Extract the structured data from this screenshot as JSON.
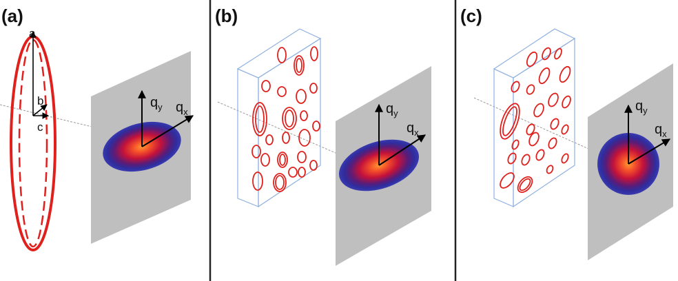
{
  "panels": [
    {
      "label": "(a)",
      "semi_axes": [
        "a",
        "b",
        "c"
      ],
      "q_axes": {
        "y": {
          "base": "q",
          "sub": "y"
        },
        "x": {
          "base": "q",
          "sub": "x"
        }
      }
    },
    {
      "label": "(b)",
      "q_axes": {
        "y": {
          "base": "q",
          "sub": "y"
        },
        "x": {
          "base": "q",
          "sub": "x"
        }
      }
    },
    {
      "label": "(c)",
      "q_axes": {
        "y": {
          "base": "q",
          "sub": "y"
        },
        "x": {
          "base": "q",
          "sub": "x"
        }
      }
    }
  ],
  "colors": {
    "ellipsoid": "#e0201c",
    "detector": "#bfbfbf",
    "box_outline": "#8eb0e0",
    "divider": "#222222",
    "beam": "#999999",
    "scatter_outer": "#2b2a9a",
    "scatter_mid": "#c4123a",
    "scatter_core": "#ff8a2a"
  }
}
